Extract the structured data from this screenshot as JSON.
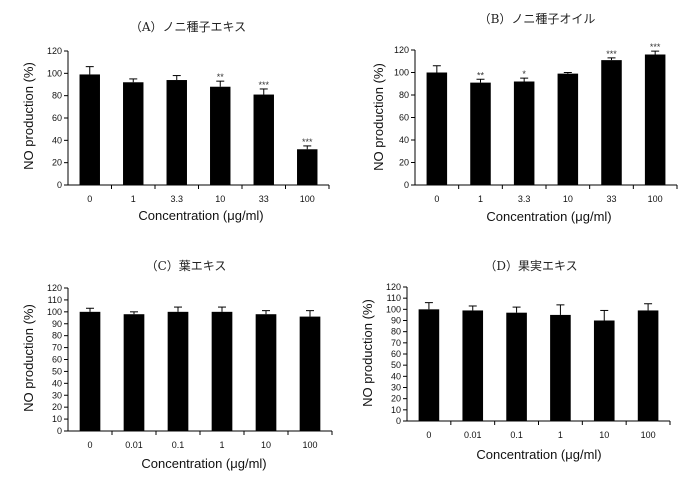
{
  "chart_data": [
    {
      "type": "bar",
      "title": "（A）ノニ種子エキス",
      "ylabel": "NO production (%)",
      "xlabel": "Concentration (μg/ml)",
      "ylim": [
        0,
        120
      ],
      "yticks": [
        0,
        20,
        40,
        60,
        80,
        100,
        120
      ],
      "categories": [
        "0",
        "1",
        "3.3",
        "10",
        "33",
        "100"
      ],
      "values": [
        99,
        92,
        94,
        88,
        81,
        32
      ],
      "errors": [
        7,
        3,
        4,
        5,
        5,
        3
      ],
      "significance": [
        "",
        "",
        "",
        "**",
        "***",
        "***"
      ]
    },
    {
      "type": "bar",
      "title": "（B）ノニ種子オイル",
      "ylabel": "NO production (%)",
      "xlabel": "Concentration (μg/ml)",
      "ylim": [
        0,
        120
      ],
      "yticks": [
        0,
        20,
        40,
        60,
        80,
        100,
        120
      ],
      "categories": [
        "0",
        "1",
        "3.3",
        "10",
        "33",
        "100"
      ],
      "values": [
        100,
        91,
        92,
        99,
        111,
        116
      ],
      "errors": [
        6,
        3,
        3,
        1,
        2,
        3
      ],
      "significance": [
        "",
        "**",
        "*",
        "",
        "***",
        "***"
      ]
    },
    {
      "type": "bar",
      "title": "（C）葉エキス",
      "ylabel": "NO production (%)",
      "xlabel": "Concentration (μg/ml)",
      "ylim": [
        0,
        120
      ],
      "yticks": [
        0,
        10,
        20,
        30,
        40,
        50,
        60,
        70,
        80,
        90,
        100,
        110,
        120
      ],
      "categories": [
        "0",
        "0.01",
        "0.1",
        "1",
        "10",
        "100"
      ],
      "values": [
        100,
        98,
        100,
        100,
        98,
        96
      ],
      "errors": [
        3,
        2,
        4,
        4,
        3,
        5
      ],
      "significance": [
        "",
        "",
        "",
        "",
        "",
        ""
      ]
    },
    {
      "type": "bar",
      "title": "（D）果実エキス",
      "ylabel": "NO production (%)",
      "xlabel": "Concentration (μg/ml)",
      "ylim": [
        0,
        120
      ],
      "yticks": [
        0,
        10,
        20,
        30,
        40,
        50,
        60,
        70,
        80,
        90,
        100,
        110,
        120
      ],
      "categories": [
        "0",
        "0.01",
        "0.1",
        "1",
        "10",
        "100"
      ],
      "values": [
        100,
        99,
        97,
        95,
        90,
        99
      ],
      "errors": [
        6,
        4,
        5,
        9,
        9,
        6
      ],
      "significance": [
        "",
        "",
        "",
        "",
        "",
        ""
      ]
    }
  ]
}
